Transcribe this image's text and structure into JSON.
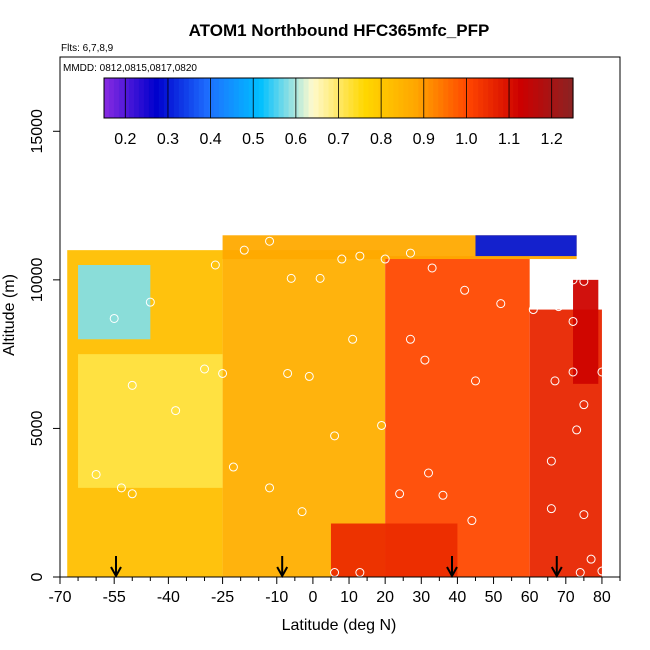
{
  "chart_data": {
    "type": "heatmap",
    "title": "ATOM1 Northbound HFC365mfc_PFP",
    "subtitle_flights": "Flts: 6,7,8,9",
    "subtitle_dates": "MMDD: 0812,0815,0817,0820",
    "xlabel": "Latitude (deg N)",
    "ylabel": "Altitude (m)",
    "xlim": [
      -70,
      85
    ],
    "ylim": [
      0,
      17500
    ],
    "x_ticks": [
      -70,
      -55,
      -40,
      -25,
      -10,
      0,
      10,
      20,
      30,
      40,
      50,
      60,
      70,
      80
    ],
    "x_minor_ticks": [
      -65,
      -60,
      -50,
      -45,
      -35,
      -30,
      -20,
      -15,
      -5,
      5,
      15,
      25,
      35,
      45,
      55,
      65,
      75,
      85
    ],
    "y_ticks": [
      0,
      5000,
      10000,
      15000
    ],
    "colorbar": {
      "min": 0.15,
      "max": 1.25,
      "ticks": [
        "0.2",
        "0.3",
        "0.4",
        "0.5",
        "0.6",
        "0.7",
        "0.8",
        "0.9",
        "1.0",
        "1.1",
        "1.2"
      ],
      "colors": [
        "#8a2be2",
        "#0000cd",
        "#1e6fff",
        "#00bfff",
        "#fffacd",
        "#ffd700",
        "#ffa500",
        "#ff4500",
        "#cc0000",
        "#8b2323"
      ]
    },
    "arrows_latitude": [
      -54.5,
      -8.5,
      38.5,
      67.5
    ],
    "field_zones": [
      {
        "lat": [
          -68,
          -25
        ],
        "alt": [
          0,
          11000
        ],
        "value": 0.82
      },
      {
        "lat": [
          -25,
          20
        ],
        "alt": [
          0,
          11000
        ],
        "value": 0.86
      },
      {
        "lat": [
          20,
          60
        ],
        "alt": [
          0,
          10800
        ],
        "value": 1.0
      },
      {
        "lat": [
          60,
          80
        ],
        "alt": [
          0,
          9000
        ],
        "value": 1.06
      },
      {
        "lat": [
          -65,
          -45
        ],
        "alt": [
          8000,
          10500
        ],
        "value": 0.58
      },
      {
        "lat": [
          -65,
          -25
        ],
        "alt": [
          3000,
          7500
        ],
        "value": 0.72
      },
      {
        "lat": [
          -25,
          73
        ],
        "alt": [
          10700,
          11500
        ],
        "value": 0.87
      },
      {
        "lat": [
          45,
          73
        ],
        "alt": [
          10800,
          11500
        ],
        "value": 0.3
      },
      {
        "lat": [
          5,
          40
        ],
        "alt": [
          0,
          1800
        ],
        "value": 1.05
      },
      {
        "lat": [
          72,
          79
        ],
        "alt": [
          6500,
          10000
        ],
        "value": 1.12
      }
    ],
    "sample_points": [
      [
        -55,
        8700
      ],
      [
        -45,
        9250
      ],
      [
        -30,
        7000
      ],
      [
        -27,
        10500
      ],
      [
        -19,
        11000
      ],
      [
        -12,
        11300
      ],
      [
        -6,
        10050
      ],
      [
        2,
        10050
      ],
      [
        8,
        10700
      ],
      [
        13,
        10800
      ],
      [
        20,
        10700
      ],
      [
        27,
        10900
      ],
      [
        33,
        10400
      ],
      [
        42,
        9650
      ],
      [
        52,
        9200
      ],
      [
        61,
        9000
      ],
      [
        68,
        9100
      ],
      [
        72,
        10000
      ],
      [
        75,
        9950
      ],
      [
        72,
        8600
      ],
      [
        11,
        8000
      ],
      [
        27,
        8000
      ],
      [
        31,
        7300
      ],
      [
        -25,
        6850
      ],
      [
        -7,
        6850
      ],
      [
        -1,
        6750
      ],
      [
        45,
        6600
      ],
      [
        67,
        6600
      ],
      [
        72,
        6900
      ],
      [
        80,
        6900
      ],
      [
        -50,
        6450
      ],
      [
        75,
        5800
      ],
      [
        73,
        4950
      ],
      [
        -38,
        5600
      ],
      [
        19,
        5100
      ],
      [
        6,
        4750
      ],
      [
        -22,
        3700
      ],
      [
        32,
        3500
      ],
      [
        66,
        3900
      ],
      [
        -60,
        3450
      ],
      [
        -53,
        3000
      ],
      [
        -50,
        2800
      ],
      [
        -12,
        3000
      ],
      [
        24,
        2800
      ],
      [
        36,
        2750
      ],
      [
        -3,
        2200
      ],
      [
        44,
        1900
      ],
      [
        66,
        2300
      ],
      [
        75,
        2100
      ],
      [
        77,
        600
      ],
      [
        6,
        150
      ],
      [
        13,
        150
      ],
      [
        74,
        150
      ],
      [
        80,
        200
      ]
    ]
  }
}
